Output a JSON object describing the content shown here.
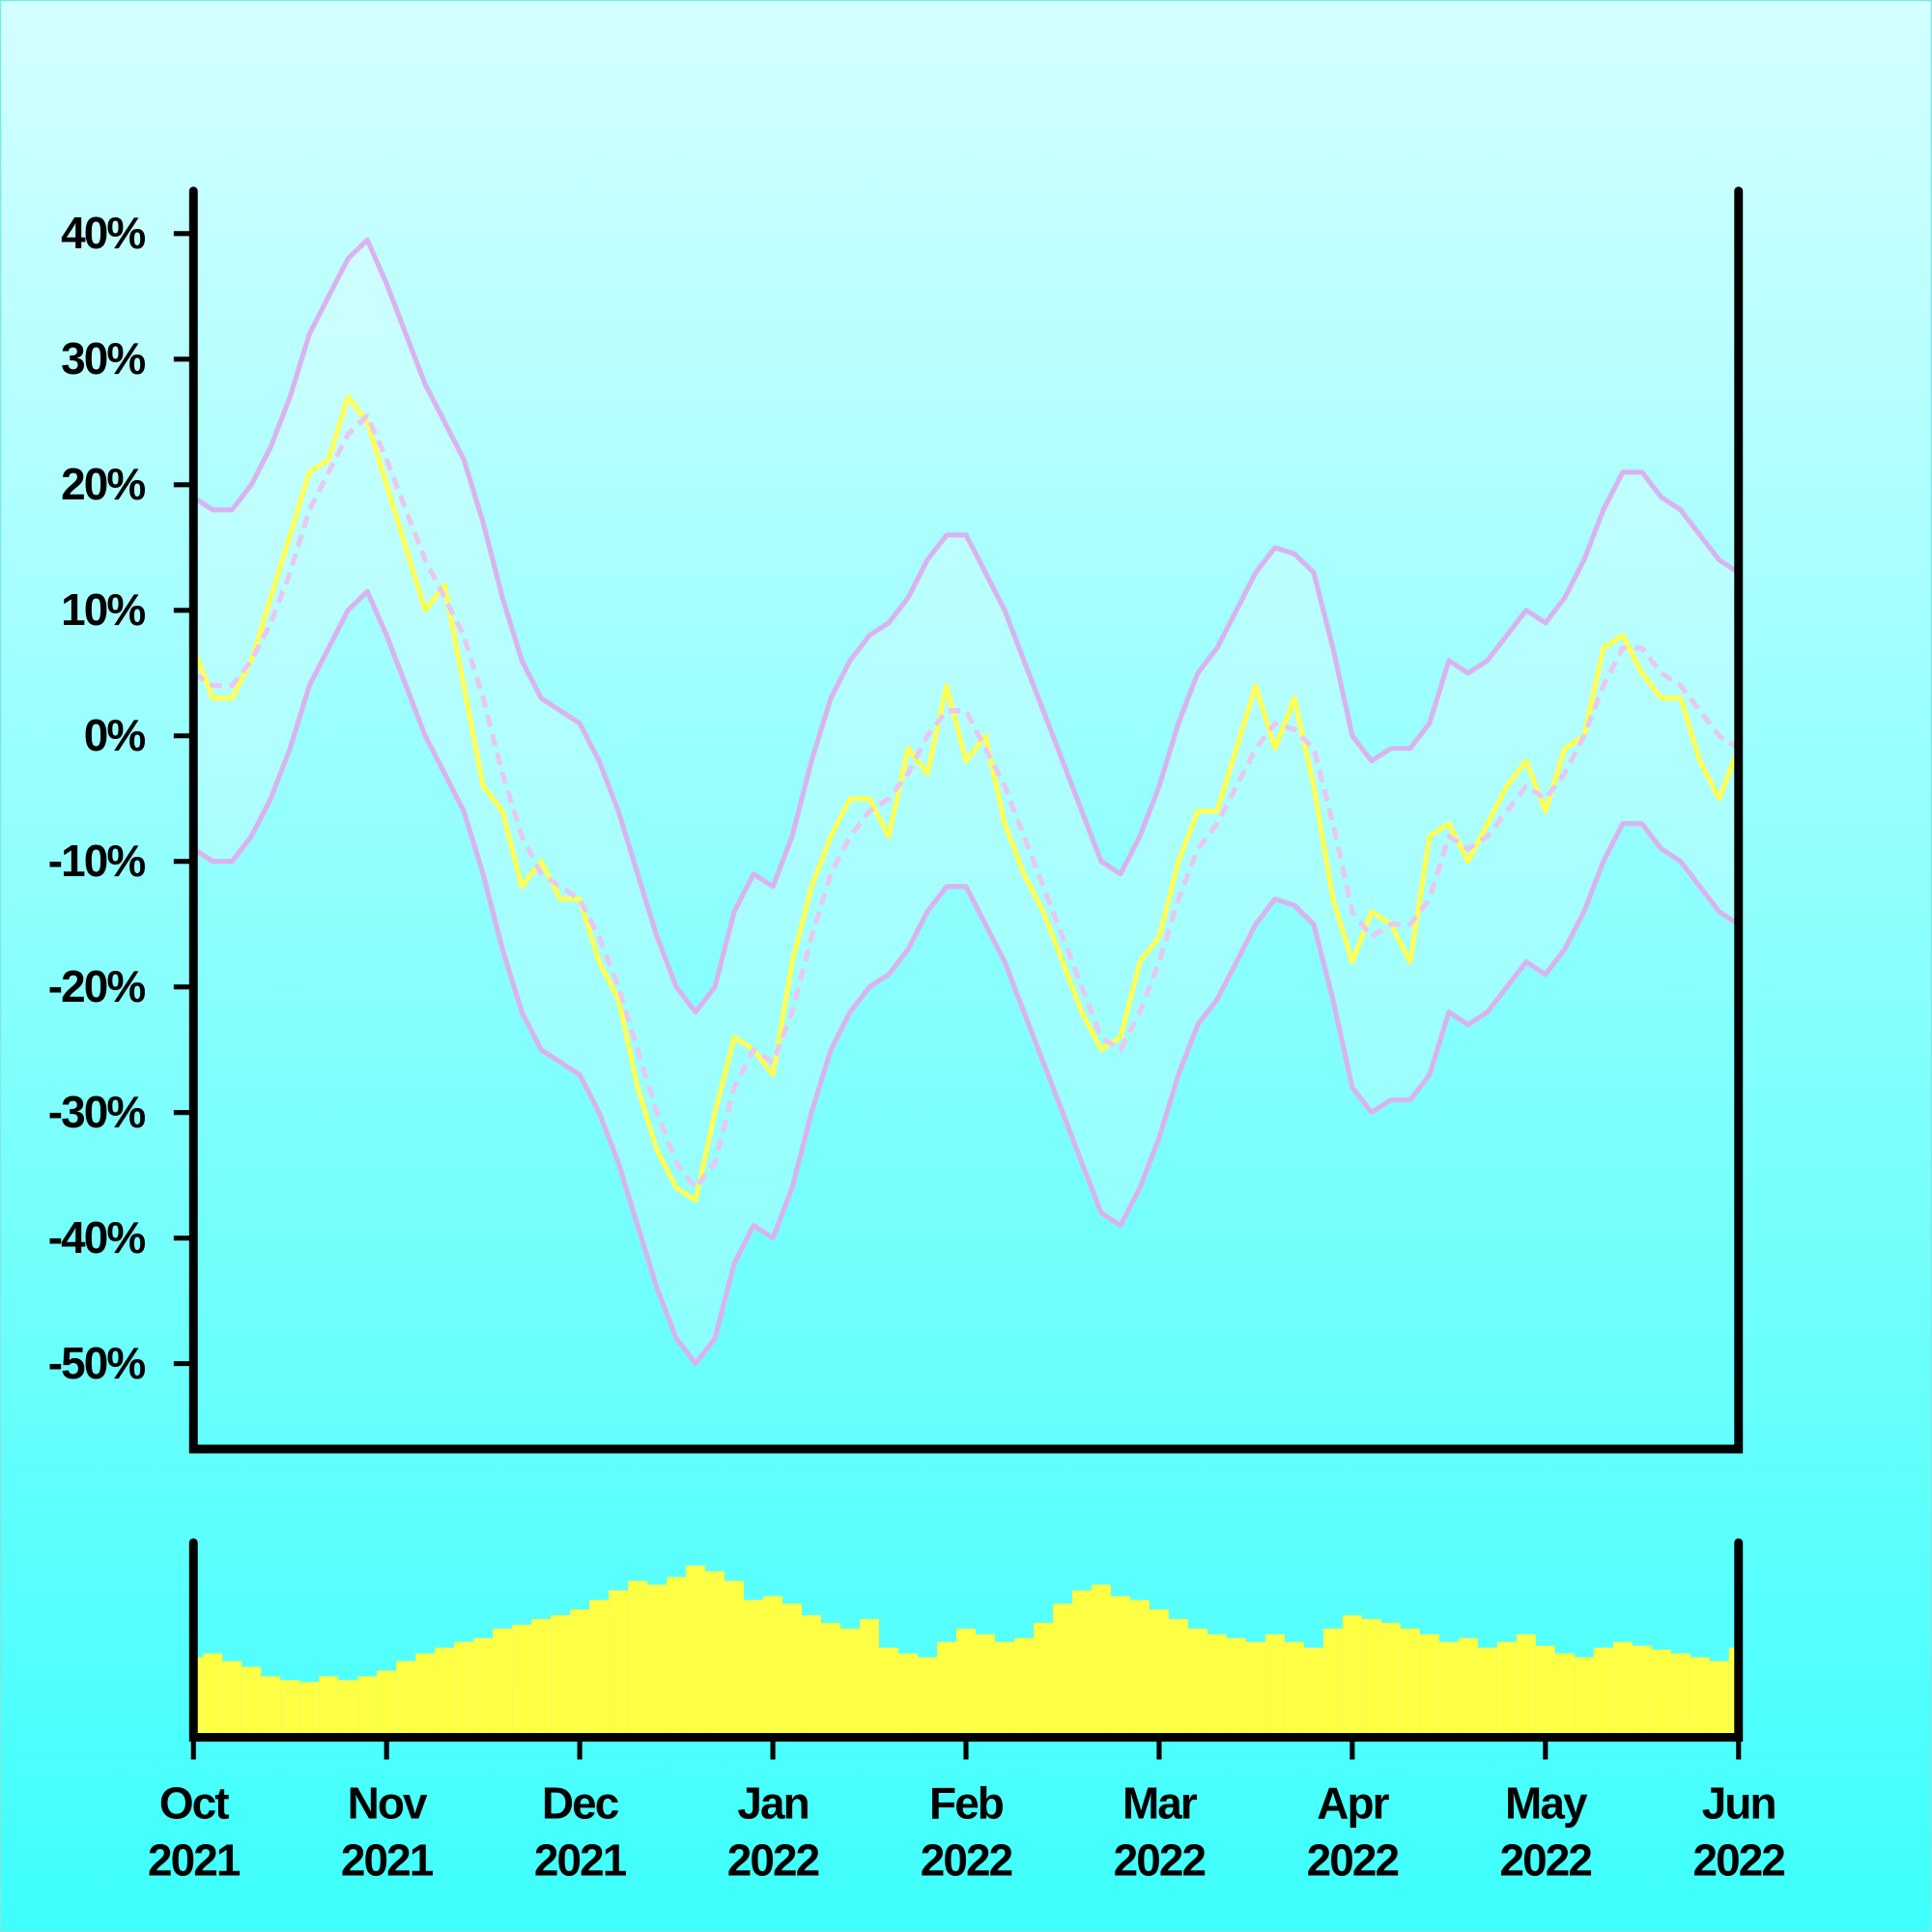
{
  "chart_data": {
    "type": "line",
    "x": [
      0,
      0.1,
      0.2,
      0.3,
      0.4,
      0.5,
      0.6,
      0.7,
      0.8,
      0.9,
      1,
      1.1,
      1.2,
      1.3,
      1.4,
      1.5,
      1.6,
      1.7,
      1.8,
      1.9,
      2,
      2.1,
      2.2,
      2.3,
      2.4,
      2.5,
      2.6,
      2.7,
      2.8,
      2.9,
      3,
      3.1,
      3.2,
      3.3,
      3.4,
      3.5,
      3.6,
      3.7,
      3.8,
      3.9,
      4,
      4.1,
      4.2,
      4.3,
      4.4,
      4.5,
      4.6,
      4.7,
      4.8,
      4.9,
      5,
      5.1,
      5.2,
      5.3,
      5.4,
      5.5,
      5.6,
      5.7,
      5.8,
      5.9,
      6,
      6.1,
      6.2,
      6.3,
      6.4,
      6.5,
      6.6,
      6.7,
      6.8,
      6.9,
      7,
      7.1,
      7.2,
      7.3,
      7.4,
      7.5,
      7.6,
      7.7,
      7.8,
      7.9,
      8
    ],
    "xlim": [
      0,
      8
    ],
    "xticks": [
      {
        "value": 0,
        "label": [
          "Oct",
          "2021"
        ]
      },
      {
        "value": 1,
        "label": [
          "Nov",
          "2021"
        ]
      },
      {
        "value": 2,
        "label": [
          "Dec",
          "2021"
        ]
      },
      {
        "value": 3,
        "label": [
          "Jan",
          "2022"
        ]
      },
      {
        "value": 4,
        "label": [
          "Feb",
          "2022"
        ]
      },
      {
        "value": 5,
        "label": [
          "Mar",
          "2022"
        ]
      },
      {
        "value": 6,
        "label": [
          "Apr",
          "2022"
        ]
      },
      {
        "value": 7,
        "label": [
          "May",
          "2022"
        ]
      },
      {
        "value": 8,
        "label": [
          "Jun",
          "2022"
        ]
      }
    ],
    "ylim": [
      -56.8,
      43.2
    ],
    "yticks": [
      {
        "value": 40,
        "label": "40%"
      },
      {
        "value": 30,
        "label": "30%"
      },
      {
        "value": 20,
        "label": "20%"
      },
      {
        "value": 10,
        "label": "10%"
      },
      {
        "value": 0,
        "label": "0%"
      },
      {
        "value": -10,
        "label": "-10%"
      },
      {
        "value": -20,
        "label": "-20%"
      },
      {
        "value": -30,
        "label": "-30%"
      },
      {
        "value": -40,
        "label": "-40%"
      },
      {
        "value": -50,
        "label": "-50%"
      }
    ],
    "band_fill": "rgba(255,255,255,0.22)",
    "series": [
      {
        "color": "#d9b3f0",
        "dash": false,
        "values": [
          19,
          18,
          18,
          20,
          23,
          27,
          32,
          35,
          38,
          39.5,
          36,
          32,
          28,
          25,
          22,
          17,
          11,
          6,
          3,
          2,
          1,
          -2,
          -6,
          -11,
          -16,
          -20,
          -22,
          -20,
          -14,
          -11,
          -12,
          -8,
          -2,
          3,
          6,
          8,
          9,
          11,
          14,
          16,
          16,
          13,
          10,
          6,
          2,
          -2,
          -6,
          -10,
          -11,
          -8,
          -4,
          1,
          5,
          7,
          10,
          13,
          15,
          14.5,
          13,
          7,
          0,
          -2,
          -1,
          -1,
          1,
          6,
          5,
          6,
          8,
          10,
          9,
          11,
          14,
          18,
          21,
          21,
          19,
          18,
          16,
          14,
          13
        ]
      },
      {
        "color": "#d9b3f0",
        "dash": false,
        "values": [
          -9,
          -10,
          -10,
          -8,
          -5,
          -1,
          4,
          7,
          10,
          11.5,
          8,
          4,
          0,
          -3,
          -6,
          -11,
          -17,
          -22,
          -25,
          -26,
          -27,
          -30,
          -34,
          -39,
          -44,
          -48,
          -50,
          -48,
          -42,
          -39,
          -40,
          -36,
          -30,
          -25,
          -22,
          -20,
          -19,
          -17,
          -14,
          -12,
          -12,
          -15,
          -18,
          -22,
          -26,
          -30,
          -34,
          -38,
          -39,
          -36,
          -32,
          -27,
          -23,
          -21,
          -18,
          -15,
          -13,
          -13.5,
          -15,
          -21,
          -28,
          -30,
          -29,
          -29,
          -27,
          -22,
          -23,
          -22,
          -20,
          -18,
          -19,
          -17,
          -14,
          -10,
          -7,
          -7,
          -9,
          -10,
          -12,
          -14,
          -15
        ]
      },
      {
        "color": "#ffff55",
        "dash": false,
        "values": [
          7,
          3,
          3,
          6,
          11,
          16,
          21,
          22,
          27,
          25,
          20,
          15,
          10,
          12,
          4,
          -4,
          -6,
          -12,
          -10,
          -13,
          -13,
          -18,
          -21,
          -28,
          -33,
          -36,
          -37,
          -30,
          -24,
          -25,
          -27,
          -18,
          -12,
          -8,
          -5,
          -5,
          -8,
          -1,
          -3,
          4,
          -2,
          0,
          -7,
          -11,
          -14,
          -18,
          -22,
          -25,
          -24,
          -18,
          -16,
          -10,
          -6,
          -6,
          -1,
          4,
          -1,
          3,
          -4,
          -13,
          -18,
          -14,
          -15,
          -18,
          -8,
          -7,
          -10,
          -7,
          -4,
          -2,
          -6,
          -1,
          0,
          7,
          8,
          5,
          3,
          3,
          -2,
          -5,
          -1
        ]
      },
      {
        "color": "#e6c8f2",
        "dash": true,
        "values": [
          5,
          4,
          4,
          6,
          9,
          13,
          18,
          21,
          24,
          25.5,
          22,
          18,
          14,
          11,
          8,
          3,
          -3,
          -8,
          -11,
          -12,
          -13,
          -16,
          -20,
          -25,
          -30,
          -34,
          -36,
          -34,
          -28,
          -25,
          -26,
          -22,
          -16,
          -11,
          -8,
          -6,
          -5,
          -3,
          0,
          2,
          2,
          -1,
          -4,
          -8,
          -12,
          -16,
          -20,
          -24,
          -25,
          -22,
          -18,
          -13,
          -9,
          -7,
          -4,
          -1,
          1,
          0.5,
          -1,
          -7,
          -14,
          -16,
          -15,
          -15,
          -13,
          -8,
          -9,
          -8,
          -6,
          -4,
          -5,
          -3,
          0,
          4,
          7,
          7,
          5,
          4,
          2,
          0,
          -1
        ]
      }
    ],
    "volume": {
      "color": "#ffff44",
      "ylim": [
        0,
        100
      ],
      "values": [
        40,
        42,
        38,
        35,
        30,
        28,
        27,
        30,
        28,
        30,
        33,
        38,
        42,
        45,
        48,
        50,
        55,
        57,
        60,
        62,
        65,
        70,
        75,
        80,
        78,
        82,
        88,
        85,
        80,
        70,
        72,
        68,
        62,
        58,
        55,
        60,
        45,
        42,
        40,
        48,
        55,
        52,
        48,
        50,
        58,
        68,
        75,
        78,
        72,
        70,
        65,
        60,
        55,
        52,
        50,
        48,
        52,
        48,
        45,
        55,
        62,
        60,
        58,
        55,
        52,
        48,
        50,
        45,
        48,
        52,
        46,
        42,
        40,
        45,
        48,
        46,
        44,
        42,
        40,
        38,
        45
      ]
    }
  }
}
